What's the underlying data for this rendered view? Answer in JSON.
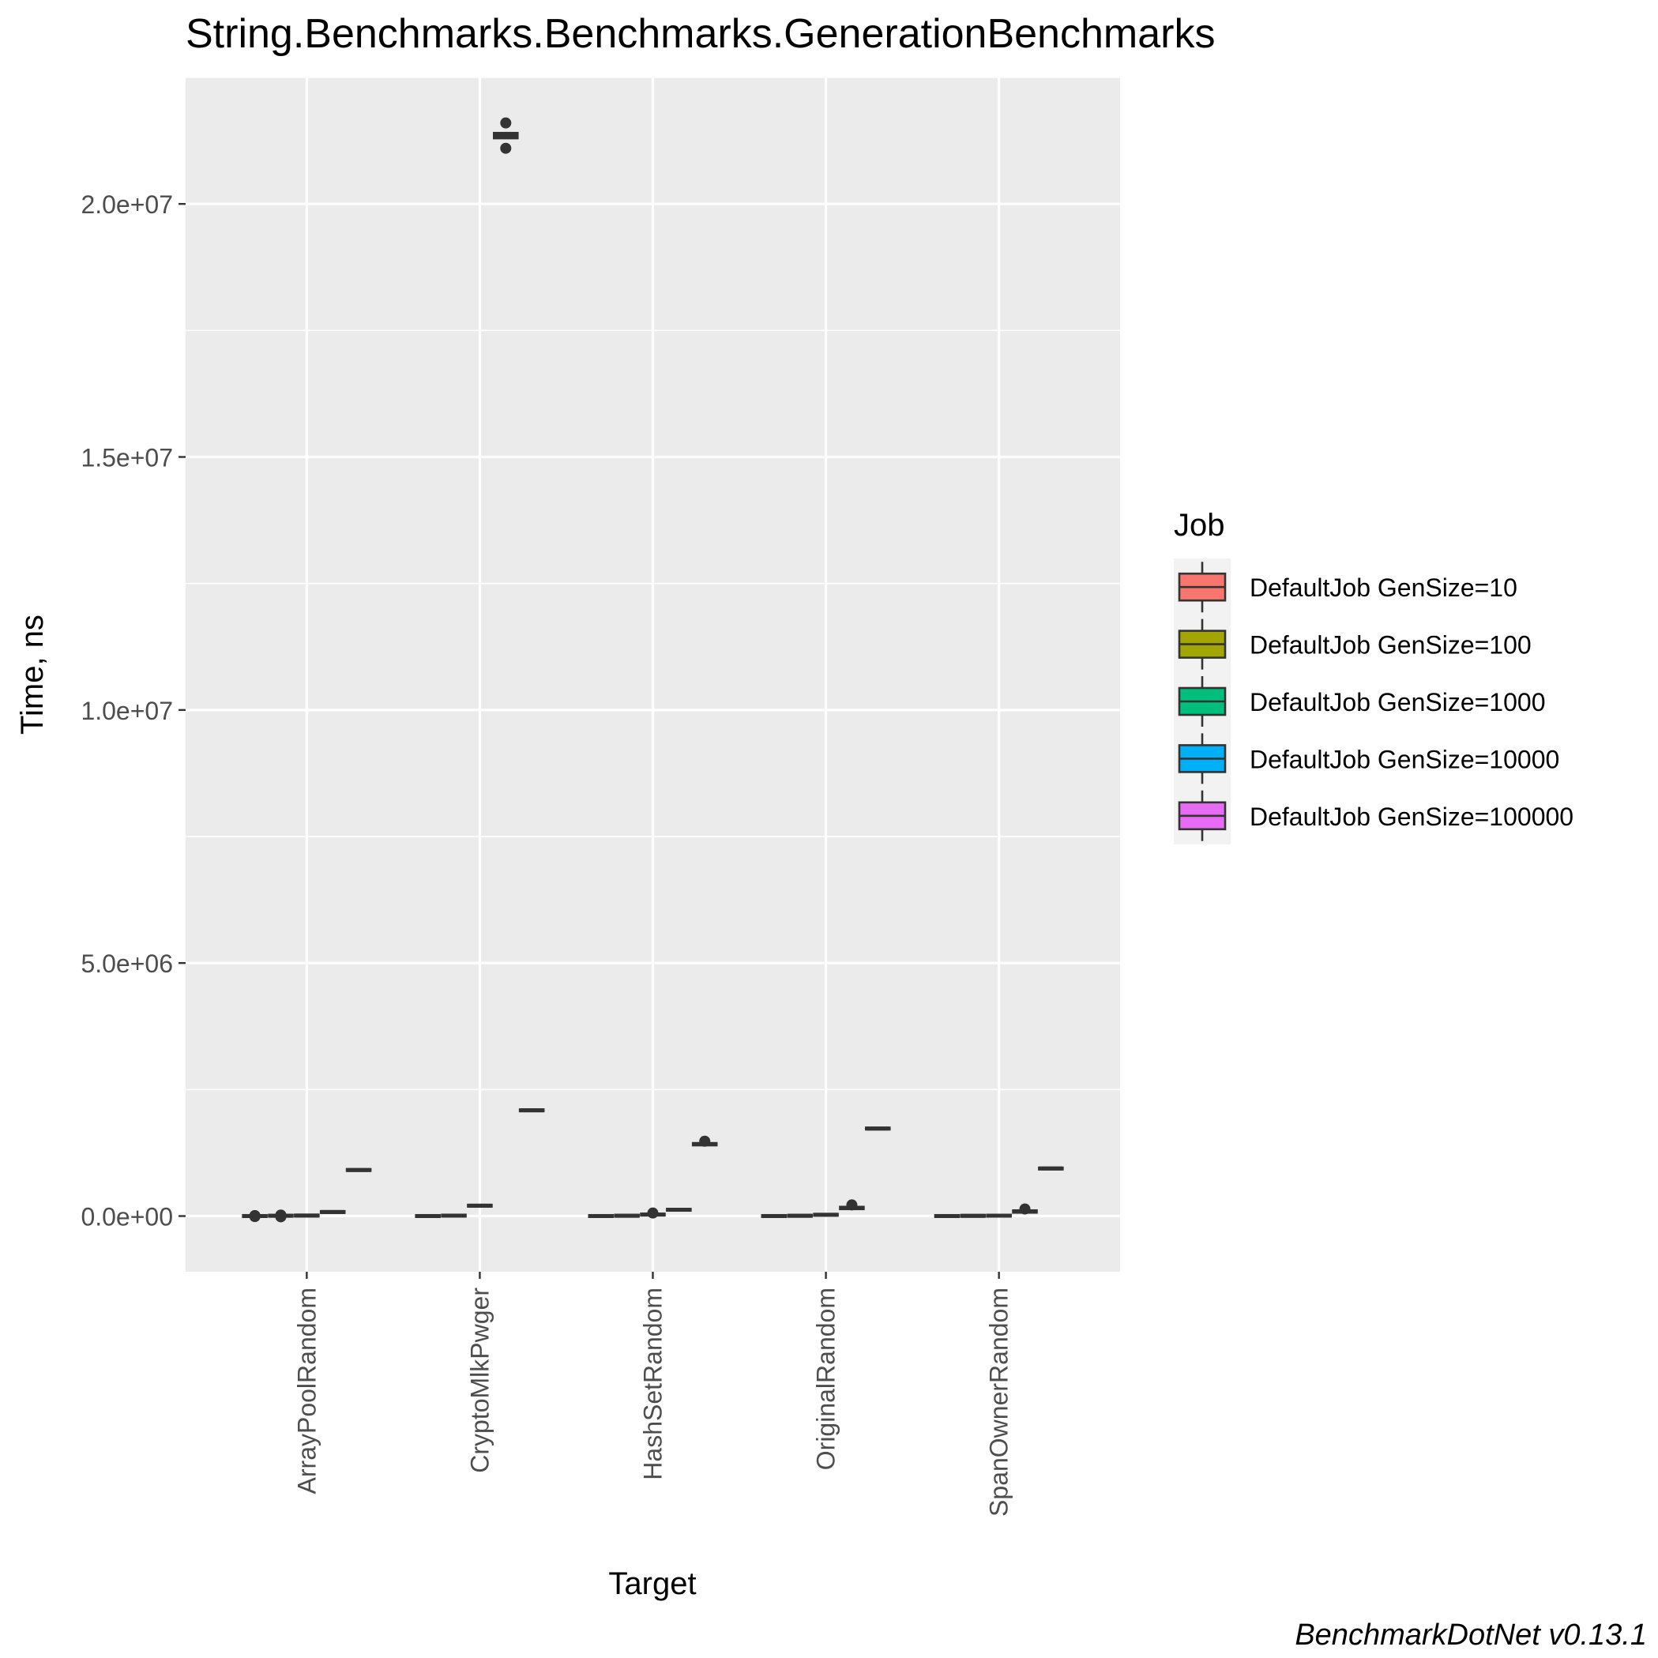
{
  "chart_data": {
    "type": "box",
    "title": "String.Benchmarks.Benchmarks.GenerationBenchmarks",
    "xlabel": "Target",
    "ylabel": "Time, ns",
    "caption": "BenchmarkDotNet v0.13.1",
    "ylim": [
      -1100000,
      22500000
    ],
    "grid": true,
    "legend": {
      "title": "Job",
      "placement": "right"
    },
    "yticks": [
      {
        "value": 0,
        "label": "0.0e+00"
      },
      {
        "value": 5000000,
        "label": "5.0e+06"
      },
      {
        "value": 10000000,
        "label": "1.0e+07"
      },
      {
        "value": 15000000,
        "label": "1.5e+07"
      },
      {
        "value": 20000000,
        "label": "2.0e+07"
      }
    ],
    "categories": [
      "ArrayPoolRandom",
      "CryptoMlkPwger",
      "HashSetRandom",
      "OriginalRandom",
      "SpanOwnerRandom"
    ],
    "series": [
      {
        "name": "DefaultJob GenSize=10",
        "color": "#F8766D",
        "boxes": [
          {
            "q1": 0,
            "median": 1000,
            "q3": 2000,
            "outliers": [
              10000,
              -10000
            ]
          },
          {
            "q1": 0,
            "median": 1000,
            "q3": 2000,
            "outliers": []
          },
          {
            "q1": 0,
            "median": 1000,
            "q3": 2000,
            "outliers": []
          },
          {
            "q1": 0,
            "median": 1000,
            "q3": 2000,
            "outliers": []
          },
          {
            "q1": 0,
            "median": 1000,
            "q3": 2000,
            "outliers": []
          }
        ]
      },
      {
        "name": "DefaultJob GenSize=100",
        "color": "#A3A500",
        "boxes": [
          {
            "q1": 5000,
            "median": 7000,
            "q3": 9000,
            "outliers": [
              20000,
              -15000
            ]
          },
          {
            "q1": 7000,
            "median": 9000,
            "q3": 11000,
            "outliers": []
          },
          {
            "q1": 5000,
            "median": 7000,
            "q3": 9000,
            "outliers": []
          },
          {
            "q1": 4000,
            "median": 6000,
            "q3": 8000,
            "outliers": []
          },
          {
            "q1": 3000,
            "median": 5000,
            "q3": 7000,
            "outliers": []
          }
        ]
      },
      {
        "name": "DefaultJob GenSize=1000",
        "color": "#00BF7D",
        "boxes": [
          {
            "q1": 8000,
            "median": 10000,
            "q3": 12000,
            "outliers": []
          },
          {
            "q1": 200000,
            "median": 205000,
            "q3": 210000,
            "outliers": []
          },
          {
            "q1": 20000,
            "median": 30000,
            "q3": 40000,
            "outliers": [
              60000
            ]
          },
          {
            "q1": 20000,
            "median": 25000,
            "q3": 30000,
            "outliers": []
          },
          {
            "q1": 5000,
            "median": 8000,
            "q3": 11000,
            "outliers": []
          }
        ]
      },
      {
        "name": "DefaultJob GenSize=10000",
        "color": "#00B0F6",
        "boxes": [
          {
            "q1": 75000,
            "median": 80000,
            "q3": 85000,
            "outliers": []
          },
          {
            "q1": 21300000,
            "median": 21350000,
            "q3": 21400000,
            "outliers": [
              21600000,
              21100000
            ]
          },
          {
            "q1": 120000,
            "median": 125000,
            "q3": 130000,
            "outliers": []
          },
          {
            "q1": 140000,
            "median": 160000,
            "q3": 180000,
            "outliers": [
              220000
            ]
          },
          {
            "q1": 70000,
            "median": 90000,
            "q3": 110000,
            "outliers": [
              140000
            ]
          }
        ]
      },
      {
        "name": "DefaultJob GenSize=100000",
        "color": "#E76BF3",
        "boxes": [
          {
            "q1": 900000,
            "median": 910000,
            "q3": 920000,
            "outliers": []
          },
          {
            "q1": 2080000,
            "median": 2090000,
            "q3": 2100000,
            "outliers": []
          },
          {
            "q1": 1400000,
            "median": 1420000,
            "q3": 1440000,
            "outliers": [
              1480000
            ]
          },
          {
            "q1": 1720000,
            "median": 1730000,
            "q3": 1740000,
            "outliers": []
          },
          {
            "q1": 930000,
            "median": 940000,
            "q3": 950000,
            "outliers": []
          }
        ]
      }
    ]
  }
}
